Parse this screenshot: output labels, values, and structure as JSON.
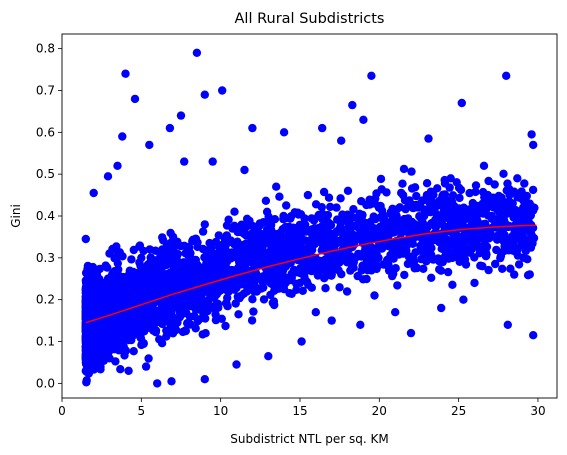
{
  "chart_data": {
    "type": "scatter",
    "title": "All Rural Subdistricts",
    "xlabel": "Subdistrict NTL per sq. KM",
    "ylabel": "Gini",
    "xlim": [
      0,
      31.2
    ],
    "ylim": [
      -0.035,
      0.835
    ],
    "x_ticks": [
      0,
      5,
      10,
      15,
      20,
      25,
      30
    ],
    "y_ticks": [
      0.0,
      0.1,
      0.2,
      0.3,
      0.4,
      0.5,
      0.6,
      0.7,
      0.8
    ],
    "x_tick_labels": [
      "0",
      "5",
      "10",
      "15",
      "20",
      "25",
      "30"
    ],
    "y_tick_labels": [
      "0.0",
      "0.1",
      "0.2",
      "0.3",
      "0.4",
      "0.5",
      "0.6",
      "0.7",
      "0.8"
    ],
    "grid": false,
    "legend": false,
    "series": [
      {
        "kind": "scatter",
        "color": "#0000ff",
        "note": "dense cloud of several thousand points concentrated at x≈2–12, y≈0.1–0.45; listed points are representative",
        "points": [
          [
            8.5,
            0.79
          ],
          [
            4.0,
            0.74
          ],
          [
            4.6,
            0.68
          ],
          [
            9.0,
            0.69
          ],
          [
            10.1,
            0.7
          ],
          [
            19.5,
            0.735
          ],
          [
            28.0,
            0.735
          ],
          [
            25.2,
            0.67
          ],
          [
            18.3,
            0.665
          ],
          [
            7.5,
            0.64
          ],
          [
            6.8,
            0.61
          ],
          [
            12.0,
            0.61
          ],
          [
            14.0,
            0.6
          ],
          [
            16.4,
            0.61
          ],
          [
            17.6,
            0.58
          ],
          [
            19.0,
            0.63
          ],
          [
            23.1,
            0.585
          ],
          [
            29.6,
            0.595
          ],
          [
            29.7,
            0.57
          ],
          [
            24.5,
            0.49
          ],
          [
            26.6,
            0.52
          ],
          [
            28.7,
            0.49
          ],
          [
            27.2,
            0.44
          ],
          [
            22.5,
            0.42
          ],
          [
            21.5,
            0.45
          ],
          [
            20.2,
            0.4
          ],
          [
            23.6,
            0.36
          ],
          [
            24.8,
            0.35
          ],
          [
            26.2,
            0.33
          ],
          [
            29.4,
            0.39
          ],
          [
            27.6,
            0.37
          ],
          [
            29.1,
            0.3
          ],
          [
            26.0,
            0.24
          ],
          [
            23.9,
            0.18
          ],
          [
            25.3,
            0.2
          ],
          [
            28.1,
            0.14
          ],
          [
            29.7,
            0.115
          ],
          [
            22.0,
            0.12
          ],
          [
            21.0,
            0.17
          ],
          [
            19.7,
            0.21
          ],
          [
            18.8,
            0.14
          ],
          [
            17.0,
            0.15
          ],
          [
            16.0,
            0.17
          ],
          [
            15.1,
            0.1
          ],
          [
            13.0,
            0.065
          ],
          [
            11.0,
            0.045
          ],
          [
            9.0,
            0.01
          ],
          [
            6.0,
            0.0
          ],
          [
            6.9,
            0.005
          ],
          [
            5.3,
            0.04
          ],
          [
            4.2,
            0.03
          ],
          [
            3.0,
            0.06
          ],
          [
            2.3,
            0.08
          ],
          [
            1.5,
            0.065
          ],
          [
            1.5,
            0.345
          ],
          [
            2.0,
            0.455
          ],
          [
            2.9,
            0.495
          ],
          [
            3.5,
            0.52
          ],
          [
            3.8,
            0.59
          ],
          [
            5.5,
            0.57
          ],
          [
            7.7,
            0.53
          ],
          [
            9.5,
            0.53
          ],
          [
            11.5,
            0.51
          ],
          [
            13.5,
            0.47
          ],
          [
            15.5,
            0.45
          ],
          [
            17.3,
            0.42
          ],
          [
            19.0,
            0.38
          ],
          [
            20.8,
            0.36
          ],
          [
            22.8,
            0.38
          ],
          [
            18.0,
            0.3
          ],
          [
            16.5,
            0.28
          ],
          [
            14.5,
            0.32
          ],
          [
            12.5,
            0.25
          ],
          [
            10.5,
            0.22
          ],
          [
            8.0,
            0.21
          ],
          [
            6.0,
            0.2
          ],
          [
            4.0,
            0.18
          ],
          [
            2.0,
            0.16
          ],
          [
            3.0,
            0.25
          ],
          [
            5.0,
            0.3
          ],
          [
            7.0,
            0.35
          ],
          [
            9.0,
            0.38
          ],
          [
            11.0,
            0.33
          ],
          [
            13.0,
            0.29
          ],
          [
            15.0,
            0.24
          ],
          [
            17.0,
            0.26
          ],
          [
            19.5,
            0.27
          ],
          [
            21.5,
            0.31
          ],
          [
            24.0,
            0.29
          ],
          [
            26.5,
            0.28
          ],
          [
            28.5,
            0.26
          ],
          [
            27.5,
            0.42
          ],
          [
            25.8,
            0.41
          ],
          [
            23.0,
            0.45
          ]
        ]
      },
      {
        "kind": "line",
        "name": "",
        "color": "#ff0000",
        "points": [
          [
            1.5,
            0.145
          ],
          [
            3.0,
            0.163
          ],
          [
            5.0,
            0.188
          ],
          [
            7.0,
            0.213
          ],
          [
            9.0,
            0.236
          ],
          [
            11.0,
            0.258
          ],
          [
            13.0,
            0.279
          ],
          [
            15.0,
            0.298
          ],
          [
            17.0,
            0.316
          ],
          [
            19.0,
            0.332
          ],
          [
            21.0,
            0.346
          ],
          [
            23.0,
            0.358
          ],
          [
            25.0,
            0.367
          ],
          [
            27.0,
            0.373
          ],
          [
            29.0,
            0.377
          ],
          [
            29.9,
            0.378
          ]
        ]
      }
    ]
  }
}
